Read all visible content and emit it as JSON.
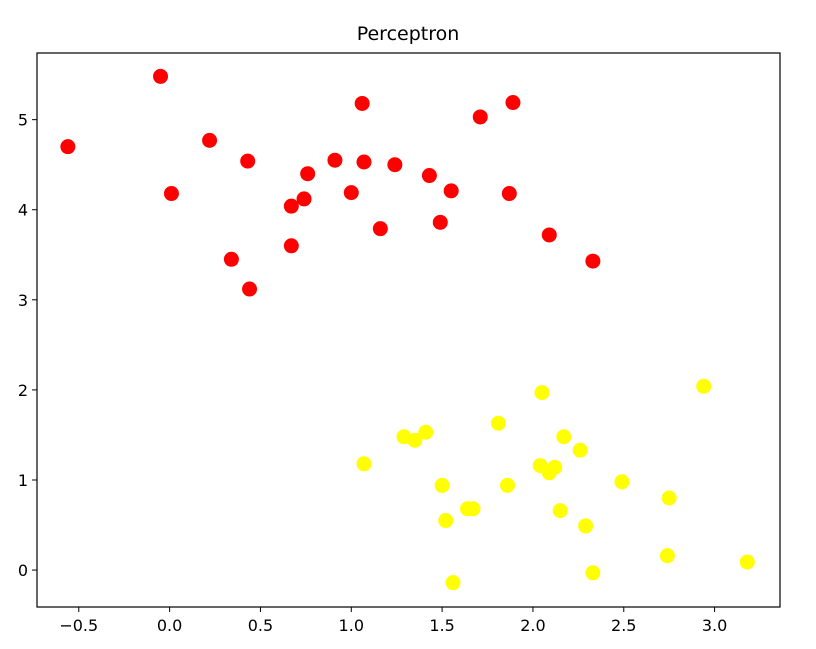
{
  "chart_data": {
    "type": "scatter",
    "title": "Perceptron",
    "xlabel": "",
    "ylabel": "",
    "xlim": [
      -0.73,
      3.36
    ],
    "ylim": [
      -0.41,
      5.74
    ],
    "x_ticks": [
      -0.5,
      0.0,
      0.5,
      1.0,
      1.5,
      2.0,
      2.5,
      3.0
    ],
    "x_tick_labels": [
      "−0.5",
      "0.0",
      "0.5",
      "1.0",
      "1.5",
      "2.0",
      "2.5",
      "3.0"
    ],
    "y_ticks": [
      0,
      1,
      2,
      3,
      4,
      5
    ],
    "y_tick_labels": [
      "0",
      "1",
      "2",
      "3",
      "4",
      "5"
    ],
    "grid": false,
    "series": [
      {
        "color": "#ff0000",
        "points": [
          [
            -0.56,
            4.7
          ],
          [
            -0.05,
            5.48
          ],
          [
            0.01,
            4.18
          ],
          [
            0.22,
            4.77
          ],
          [
            0.34,
            3.45
          ],
          [
            0.43,
            4.54
          ],
          [
            0.44,
            3.12
          ],
          [
            0.67,
            4.04
          ],
          [
            0.67,
            3.6
          ],
          [
            0.74,
            4.12
          ],
          [
            0.76,
            4.4
          ],
          [
            0.91,
            4.55
          ],
          [
            1.0,
            4.19
          ],
          [
            1.06,
            5.18
          ],
          [
            1.07,
            4.53
          ],
          [
            1.16,
            3.79
          ],
          [
            1.24,
            4.5
          ],
          [
            1.43,
            4.38
          ],
          [
            1.49,
            3.86
          ],
          [
            1.55,
            4.21
          ],
          [
            1.71,
            5.03
          ],
          [
            1.87,
            4.18
          ],
          [
            1.89,
            5.19
          ],
          [
            2.09,
            3.72
          ],
          [
            2.33,
            3.43
          ]
        ]
      },
      {
        "color": "#ffff00",
        "points": [
          [
            1.07,
            1.18
          ],
          [
            1.29,
            1.48
          ],
          [
            1.35,
            1.44
          ],
          [
            1.41,
            1.53
          ],
          [
            1.5,
            0.94
          ],
          [
            1.52,
            0.55
          ],
          [
            1.56,
            -0.14
          ],
          [
            1.64,
            0.68
          ],
          [
            1.67,
            0.68
          ],
          [
            1.81,
            1.63
          ],
          [
            1.86,
            0.94
          ],
          [
            2.04,
            1.16
          ],
          [
            2.05,
            1.97
          ],
          [
            2.09,
            1.08
          ],
          [
            2.12,
            1.14
          ],
          [
            2.15,
            0.66
          ],
          [
            2.17,
            1.48
          ],
          [
            2.26,
            1.33
          ],
          [
            2.29,
            0.49
          ],
          [
            2.33,
            -0.03
          ],
          [
            2.49,
            0.98
          ],
          [
            2.74,
            0.16
          ],
          [
            2.75,
            0.8
          ],
          [
            2.94,
            2.04
          ],
          [
            3.18,
            0.09
          ]
        ]
      }
    ]
  }
}
